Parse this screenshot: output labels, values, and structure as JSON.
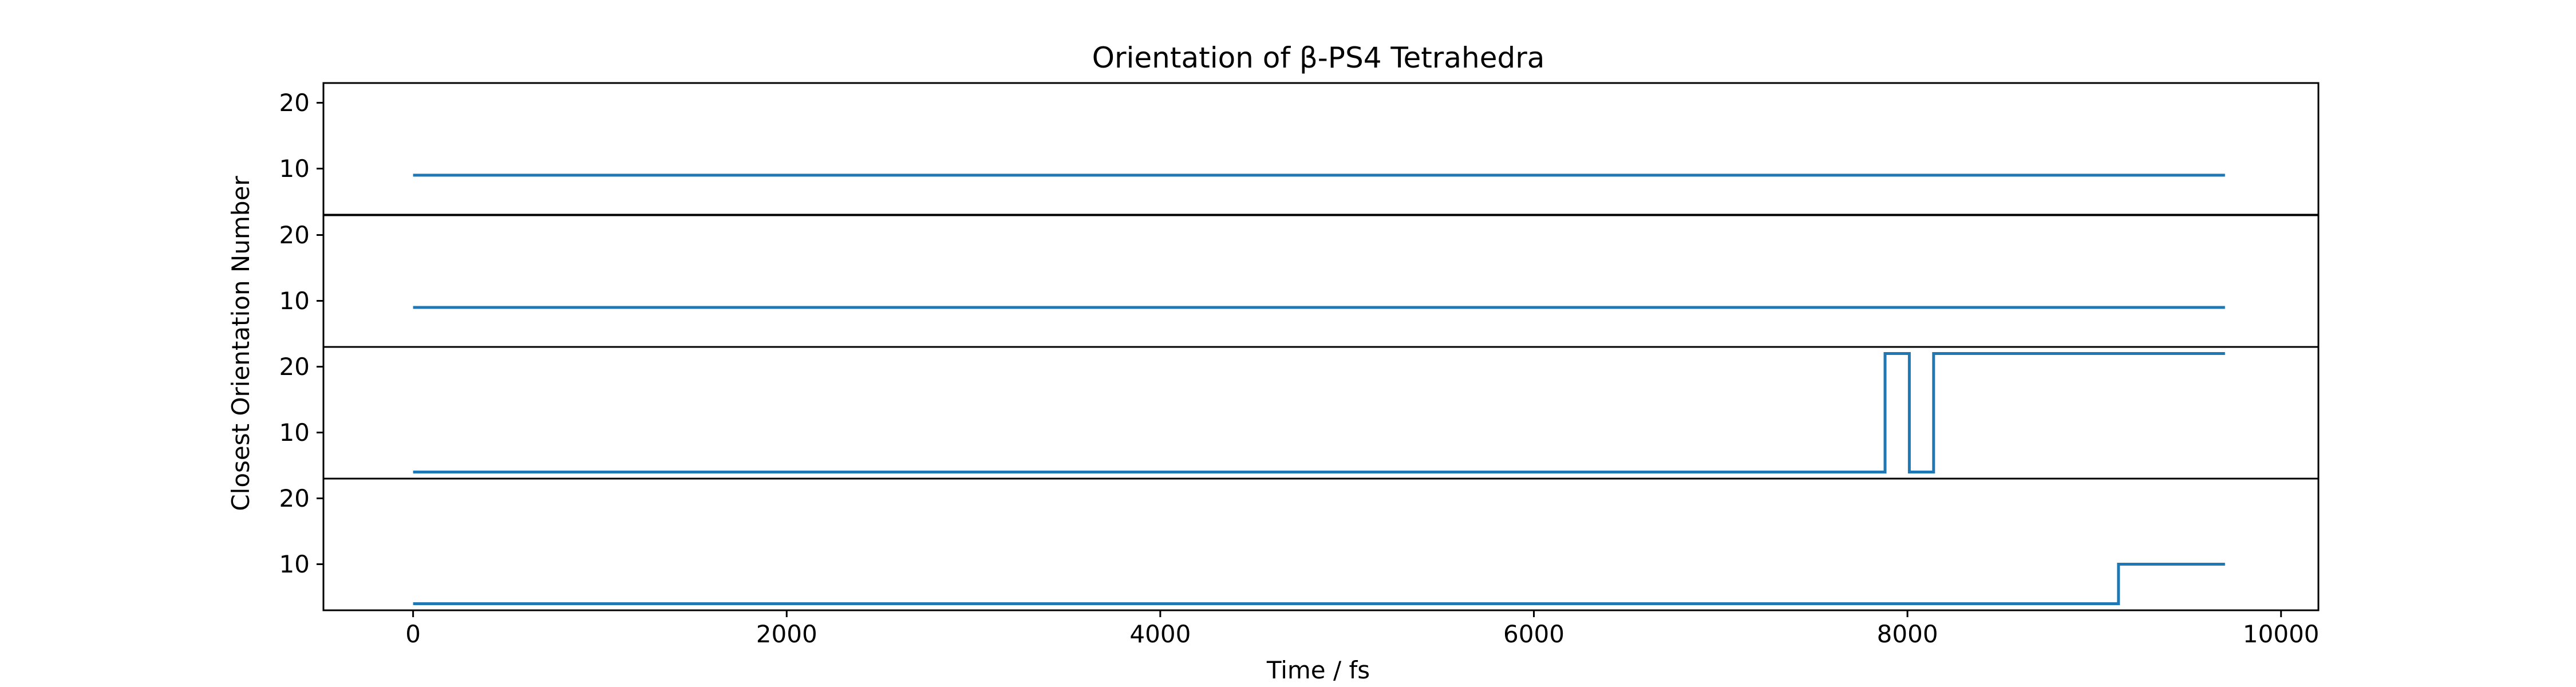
{
  "chart_data": {
    "type": "line",
    "title": "Orientation of β-PS4 Tetrahedra",
    "xlabel": "Time / fs",
    "ylabel": "Closest Orientation Number",
    "xlim": [
      -480,
      10200
    ],
    "ylim": [
      3,
      23
    ],
    "x_ticks": [
      "0",
      "2000",
      "4000",
      "6000",
      "8000",
      "10000"
    ],
    "y_ticks": [
      "10",
      "20"
    ],
    "grid": false,
    "legend": "none",
    "line_color": "#1f77b4",
    "series": [
      {
        "points": [
          [
            0,
            9
          ],
          [
            9700,
            9
          ]
        ]
      },
      {
        "points": [
          [
            0,
            9
          ],
          [
            9700,
            9
          ]
        ]
      },
      {
        "points": [
          [
            0,
            4
          ],
          [
            7880,
            4
          ],
          [
            7880,
            22
          ],
          [
            8010,
            22
          ],
          [
            8010,
            4
          ],
          [
            8140,
            4
          ],
          [
            8140,
            22
          ],
          [
            9700,
            22
          ]
        ]
      },
      {
        "points": [
          [
            0,
            4
          ],
          [
            9130,
            4
          ],
          [
            9130,
            10
          ],
          [
            9700,
            10
          ]
        ]
      }
    ]
  }
}
